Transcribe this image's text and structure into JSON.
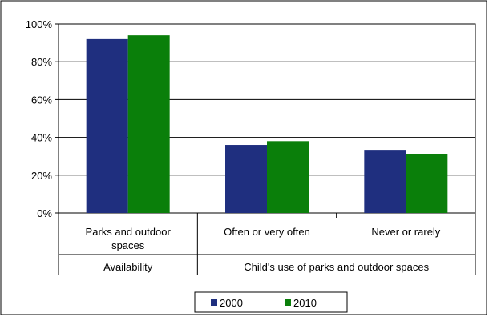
{
  "chart_data": {
    "type": "bar",
    "categories": [
      "Parks and outdoor spaces",
      "Often or very often",
      "Never or rarely"
    ],
    "category_lines": [
      [
        "Parks and outdoor",
        "spaces"
      ],
      [
        "Often or very often"
      ],
      [
        "Never or rarely"
      ]
    ],
    "groups": [
      {
        "label": "Availability",
        "categories": [
          "Parks and outdoor spaces"
        ]
      },
      {
        "label": "Child's use of parks and outdoor  spaces",
        "categories": [
          "Often or very often",
          "Never or rarely"
        ]
      }
    ],
    "series": [
      {
        "name": "2000",
        "color": "#1f2f7f",
        "values": [
          92,
          36,
          33
        ]
      },
      {
        "name": "2010",
        "color": "#0a7f0a",
        "values": [
          94,
          38,
          31
        ]
      }
    ],
    "ylim": [
      0,
      100
    ],
    "yticks": [
      {
        "value": 0,
        "label": "0%"
      },
      {
        "value": 20,
        "label": "20%"
      },
      {
        "value": 40,
        "label": "40%"
      },
      {
        "value": 60,
        "label": "60%"
      },
      {
        "value": 80,
        "label": "80%"
      },
      {
        "value": 100,
        "label": "100%"
      }
    ],
    "grid": true,
    "legend_position": "bottom",
    "title": "",
    "xlabel": "",
    "ylabel": ""
  }
}
